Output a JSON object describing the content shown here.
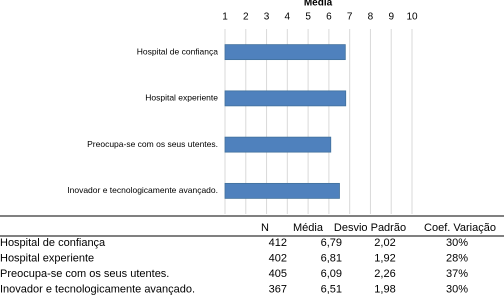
{
  "chart_data": {
    "type": "bar",
    "orientation": "horizontal",
    "title": "Média",
    "categories": [
      "Hospital de confiança",
      "Hospital experiente",
      "Preocupa-se com os seus utentes.",
      "Inovador e tecnologicamente avançado."
    ],
    "values": [
      6.79,
      6.81,
      6.09,
      6.51
    ],
    "color": "#4f81bd",
    "xlim": [
      1,
      10
    ],
    "xticks": [
      1,
      2,
      3,
      4,
      5,
      6,
      7,
      8,
      9,
      10
    ],
    "grid": true
  },
  "table": {
    "columns": [
      "N",
      "Média",
      "Desvio Padrão",
      "Coef. Variação"
    ],
    "rows": [
      [
        "Hospital de confiança",
        412,
        "6,79",
        "2,02",
        "30%"
      ],
      [
        "Hospital experiente",
        402,
        "6,81",
        "1,92",
        "28%"
      ],
      [
        "Preocupa-se com os seus utentes.",
        405,
        "6,09",
        "2,26",
        "37%"
      ],
      [
        "Inovador e tecnologicamente avançado.",
        367,
        "6,51",
        "1,98",
        "30%"
      ]
    ]
  }
}
